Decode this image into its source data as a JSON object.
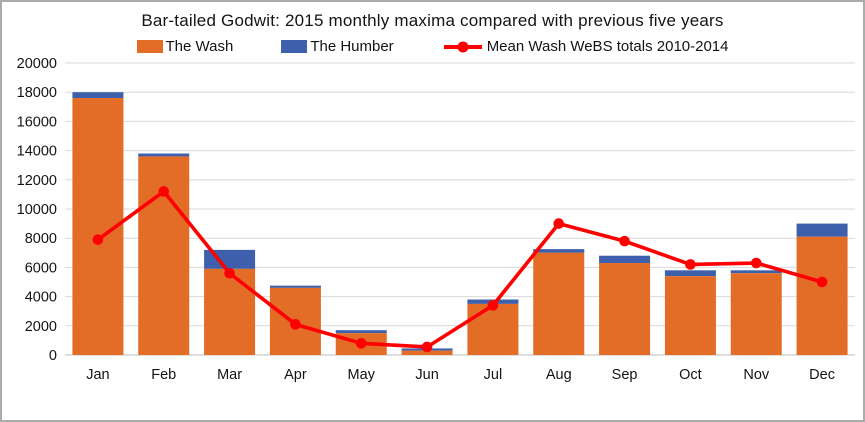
{
  "title": "Bar-tailed Godwit: 2015 monthly  maxima compared with previous five years",
  "legend": {
    "items": [
      {
        "label": "The Wash",
        "marker": "box-orange"
      },
      {
        "label": "The Humber",
        "marker": "box-blue"
      },
      {
        "label": "Mean Wash WeBS totals 2010-2014",
        "marker": "red-line-dot"
      }
    ]
  },
  "colors": {
    "wash_orange": "#e36c26",
    "humber_blue": "#3d5fac",
    "mean_red": "#ff0000",
    "gridline": "#d9d9d9",
    "axis_line": "#bfbfbf",
    "text": "#141414",
    "frame_border": "#ababab"
  },
  "chart_data": {
    "type": "bar",
    "stacked": true,
    "title": "Bar-tailed Godwit: 2015 monthly  maxima compared with previous five years",
    "categories": [
      "Jan",
      "Feb",
      "Mar",
      "Apr",
      "May",
      "Jun",
      "Jul",
      "Aug",
      "Sep",
      "Oct",
      "Nov",
      "Dec"
    ],
    "series": [
      {
        "name": "The Wash",
        "type": "bar",
        "color": "#e36c26",
        "values": [
          17600,
          13600,
          5900,
          4600,
          1500,
          300,
          3500,
          7000,
          6300,
          5400,
          5600,
          8100
        ]
      },
      {
        "name": "The Humber",
        "type": "bar",
        "color": "#3d5fac",
        "values": [
          400,
          200,
          1300,
          150,
          200,
          150,
          300,
          250,
          500,
          400,
          200,
          900
        ]
      },
      {
        "name": "Mean Wash WeBS totals 2010-2014",
        "type": "line",
        "color": "#ff0000",
        "values": [
          7900,
          11200,
          5600,
          2100,
          800,
          550,
          3400,
          9000,
          7800,
          6200,
          6300,
          5000
        ]
      }
    ],
    "xlabel": "",
    "ylabel": "",
    "ylim": [
      0,
      20000
    ],
    "ytick_step": 2000,
    "ytick_labels": [
      "0",
      "2000",
      "4000",
      "6000",
      "8000",
      "10000",
      "12000",
      "14000",
      "16000",
      "18000",
      "20000"
    ],
    "grid": true,
    "legend_position": "top"
  }
}
